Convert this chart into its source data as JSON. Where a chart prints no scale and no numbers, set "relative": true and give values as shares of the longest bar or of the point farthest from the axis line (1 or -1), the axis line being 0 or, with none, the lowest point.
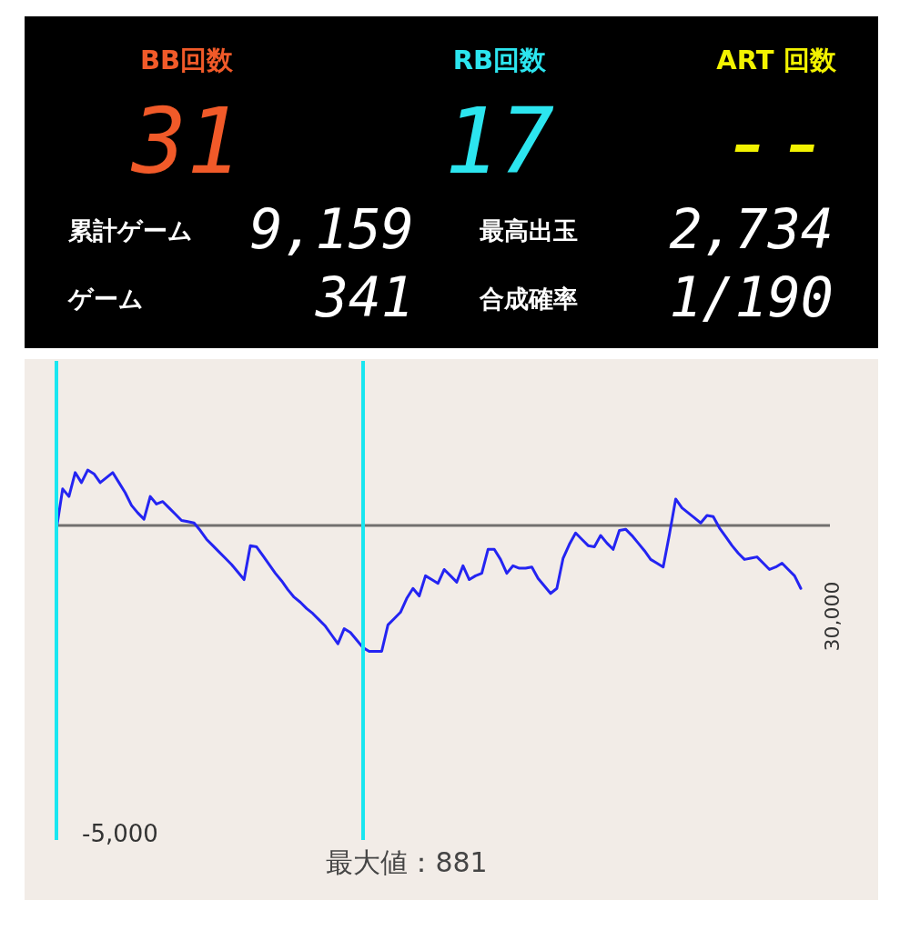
{
  "chart_data": [
    {
      "type": "other",
      "categories": [
        "BB回数",
        "RB回数",
        "ART 回数",
        "累計ゲーム",
        "最高出玉",
        "ゲーム",
        "合成確率"
      ],
      "value_labels": [
        "31",
        "17",
        "--",
        "9,159",
        "2,734",
        "341",
        "1/190"
      ]
    },
    {
      "type": "line",
      "relative": true,
      "categories": [
        null,
        null,
        null,
        null,
        null,
        null,
        null,
        null,
        null,
        null,
        null,
        null,
        null,
        null,
        null,
        null,
        null,
        null,
        null,
        null,
        null,
        null,
        null,
        null,
        null,
        null,
        null,
        null,
        null,
        null,
        null,
        null,
        null,
        null,
        null,
        null,
        null,
        null,
        null,
        null,
        null,
        null,
        null,
        null,
        null,
        null,
        null,
        null,
        null,
        null,
        null,
        null,
        null,
        null,
        null,
        null,
        null,
        null,
        null,
        null,
        null,
        null,
        null,
        null,
        null,
        null,
        null,
        null,
        null,
        null,
        null,
        null,
        null,
        null,
        null,
        null,
        null,
        null,
        null,
        null,
        null,
        null,
        null,
        null,
        null,
        null,
        null,
        null,
        null,
        null,
        null,
        null,
        null,
        null,
        null,
        null,
        null,
        null,
        null,
        null,
        null,
        null,
        null,
        null,
        null,
        null,
        null,
        null,
        null,
        null,
        null,
        null,
        null,
        null,
        null,
        null,
        null,
        null,
        null,
        null
      ],
      "values": [
        -0.03,
        0.29,
        0.23,
        0.42,
        0.34,
        0.44,
        0.41,
        0.34,
        0.38,
        0.42,
        0.34,
        0.26,
        0.16,
        0.1,
        0.05,
        0.23,
        0.17,
        0.19,
        0.14,
        0.09,
        0.04,
        0.03,
        0.02,
        -0.04,
        -0.11,
        -0.16,
        -0.21,
        -0.26,
        -0.31,
        -0.37,
        -0.43,
        -0.16,
        -0.17,
        -0.24,
        -0.31,
        -0.38,
        -0.44,
        -0.51,
        -0.57,
        -0.61,
        -0.66,
        -0.7,
        -0.75,
        -0.8,
        -0.87,
        -0.94,
        -0.82,
        -0.85,
        -0.91,
        -0.97,
        -1,
        -1,
        -1,
        -0.79,
        -0.74,
        -0.69,
        -0.58,
        -0.5,
        -0.56,
        -0.4,
        -0.43,
        -0.46,
        -0.35,
        -0.4,
        -0.45,
        -0.32,
        -0.43,
        -0.4,
        -0.38,
        -0.19,
        -0.19,
        -0.27,
        -0.38,
        -0.32,
        -0.34,
        -0.34,
        -0.33,
        -0.42,
        -0.48,
        -0.54,
        -0.5,
        -0.26,
        -0.15,
        -0.06,
        -0.11,
        -0.16,
        -0.17,
        -0.08,
        -0.14,
        -0.19,
        -0.04,
        -0.03,
        -0.08,
        -0.14,
        -0.2,
        -0.27,
        -0.3,
        -0.33,
        -0.07,
        0.21,
        0.14,
        0.1,
        0.06,
        0.02,
        0.08,
        0.07,
        -0.02,
        -0.09,
        -0.16,
        -0.22,
        -0.27,
        -0.26,
        -0.25,
        -0.3,
        -0.35,
        -0.33,
        -0.3,
        -0.35,
        -0.4,
        -0.5
      ],
      "color": "#2424f2",
      "ref_lines": [
        {
          "axis": "y",
          "value": 0,
          "color": "#72706e"
        }
      ],
      "annotations": [
        "-5,000",
        "最大値：881",
        "30,000"
      ]
    }
  ]
}
